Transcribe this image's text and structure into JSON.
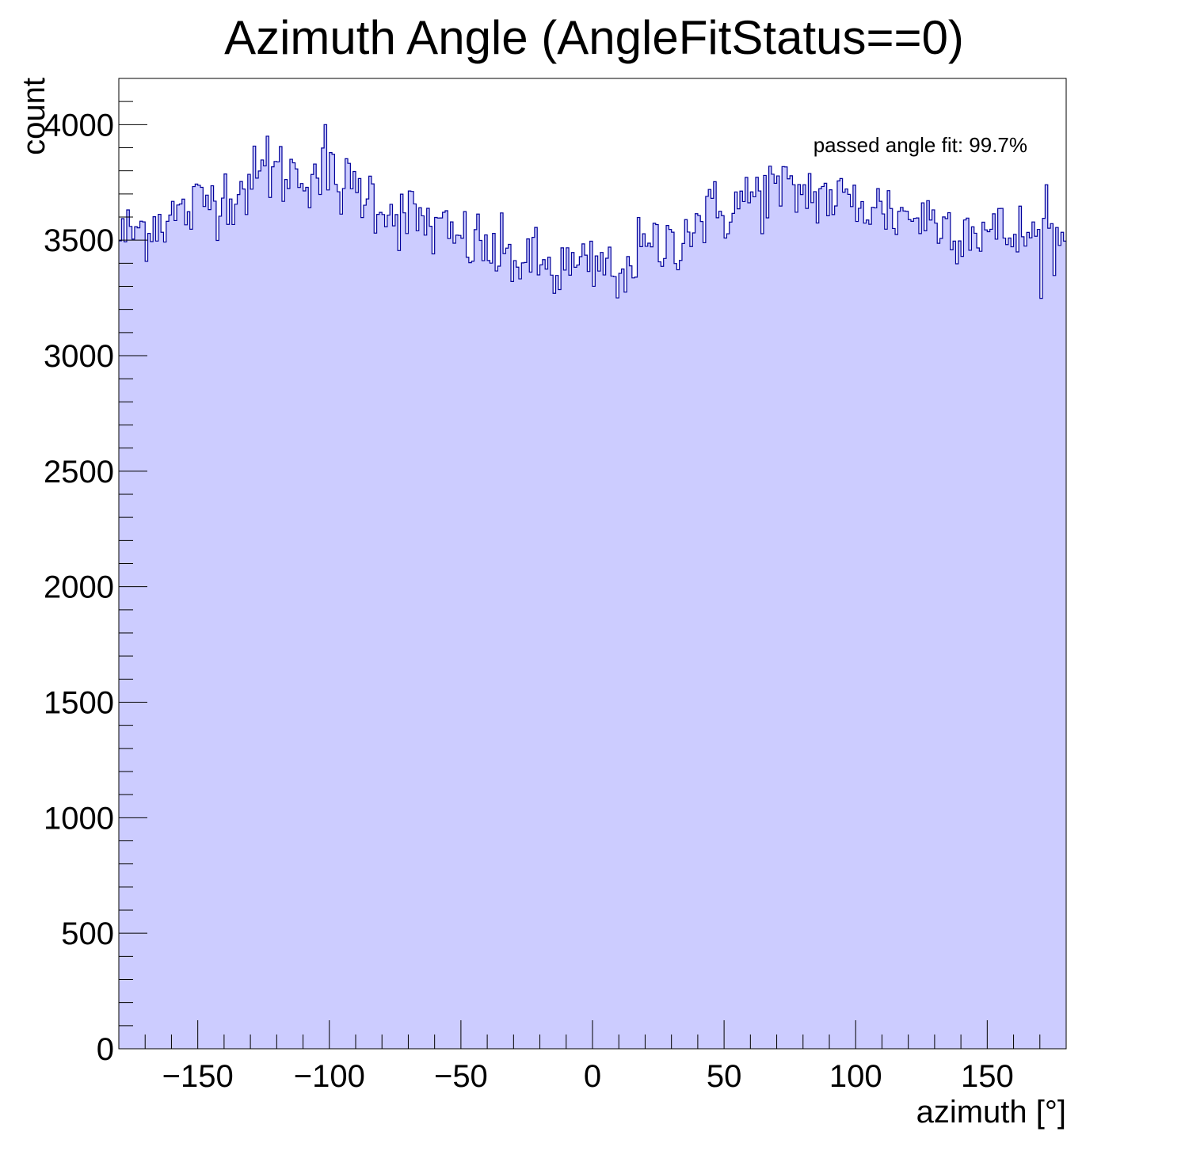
{
  "chart_data": {
    "type": "histogram",
    "title": "Azimuth Angle (AngleFitStatus==0)",
    "xlabel": "azimuth [°]",
    "ylabel": "count",
    "xlim": [
      -180,
      180
    ],
    "ylim": [
      0,
      4200
    ],
    "bin_width": 1,
    "x_ticks": [
      -150,
      -100,
      -50,
      0,
      50,
      100,
      150
    ],
    "x_tick_labels": [
      "−150",
      "−100",
      "−50",
      "0",
      "50",
      "100",
      "150"
    ],
    "y_ticks": [
      0,
      500,
      1000,
      1500,
      2000,
      2500,
      3000,
      3500,
      4000
    ],
    "y_tick_labels": [
      "0",
      "500",
      "1000",
      "1500",
      "2000",
      "2500",
      "3000",
      "3500",
      "4000"
    ],
    "annotation": "passed angle fit: 99.7%",
    "grid": false,
    "fill_color": "#ccccff",
    "line_color": "#000099",
    "trend_anchors": {
      "x": [
        -180,
        -160,
        -140,
        -120,
        -105,
        -90,
        -70,
        -50,
        -30,
        -15,
        0,
        10,
        25,
        45,
        65,
        80,
        100,
        120,
        140,
        160,
        180
      ],
      "y": [
        3520,
        3600,
        3700,
        3790,
        3790,
        3720,
        3600,
        3500,
        3420,
        3380,
        3370,
        3400,
        3470,
        3610,
        3700,
        3710,
        3660,
        3610,
        3560,
        3520,
        3500
      ]
    },
    "notable_bins": [
      {
        "x": -102,
        "y": 4000
      },
      {
        "x": -124,
        "y": 3950
      },
      {
        "x": -15,
        "y": 3270
      },
      {
        "x": 9,
        "y": 3250
      },
      {
        "x": 67,
        "y": 3820
      },
      {
        "x": 172,
        "y": 3740
      }
    ]
  }
}
